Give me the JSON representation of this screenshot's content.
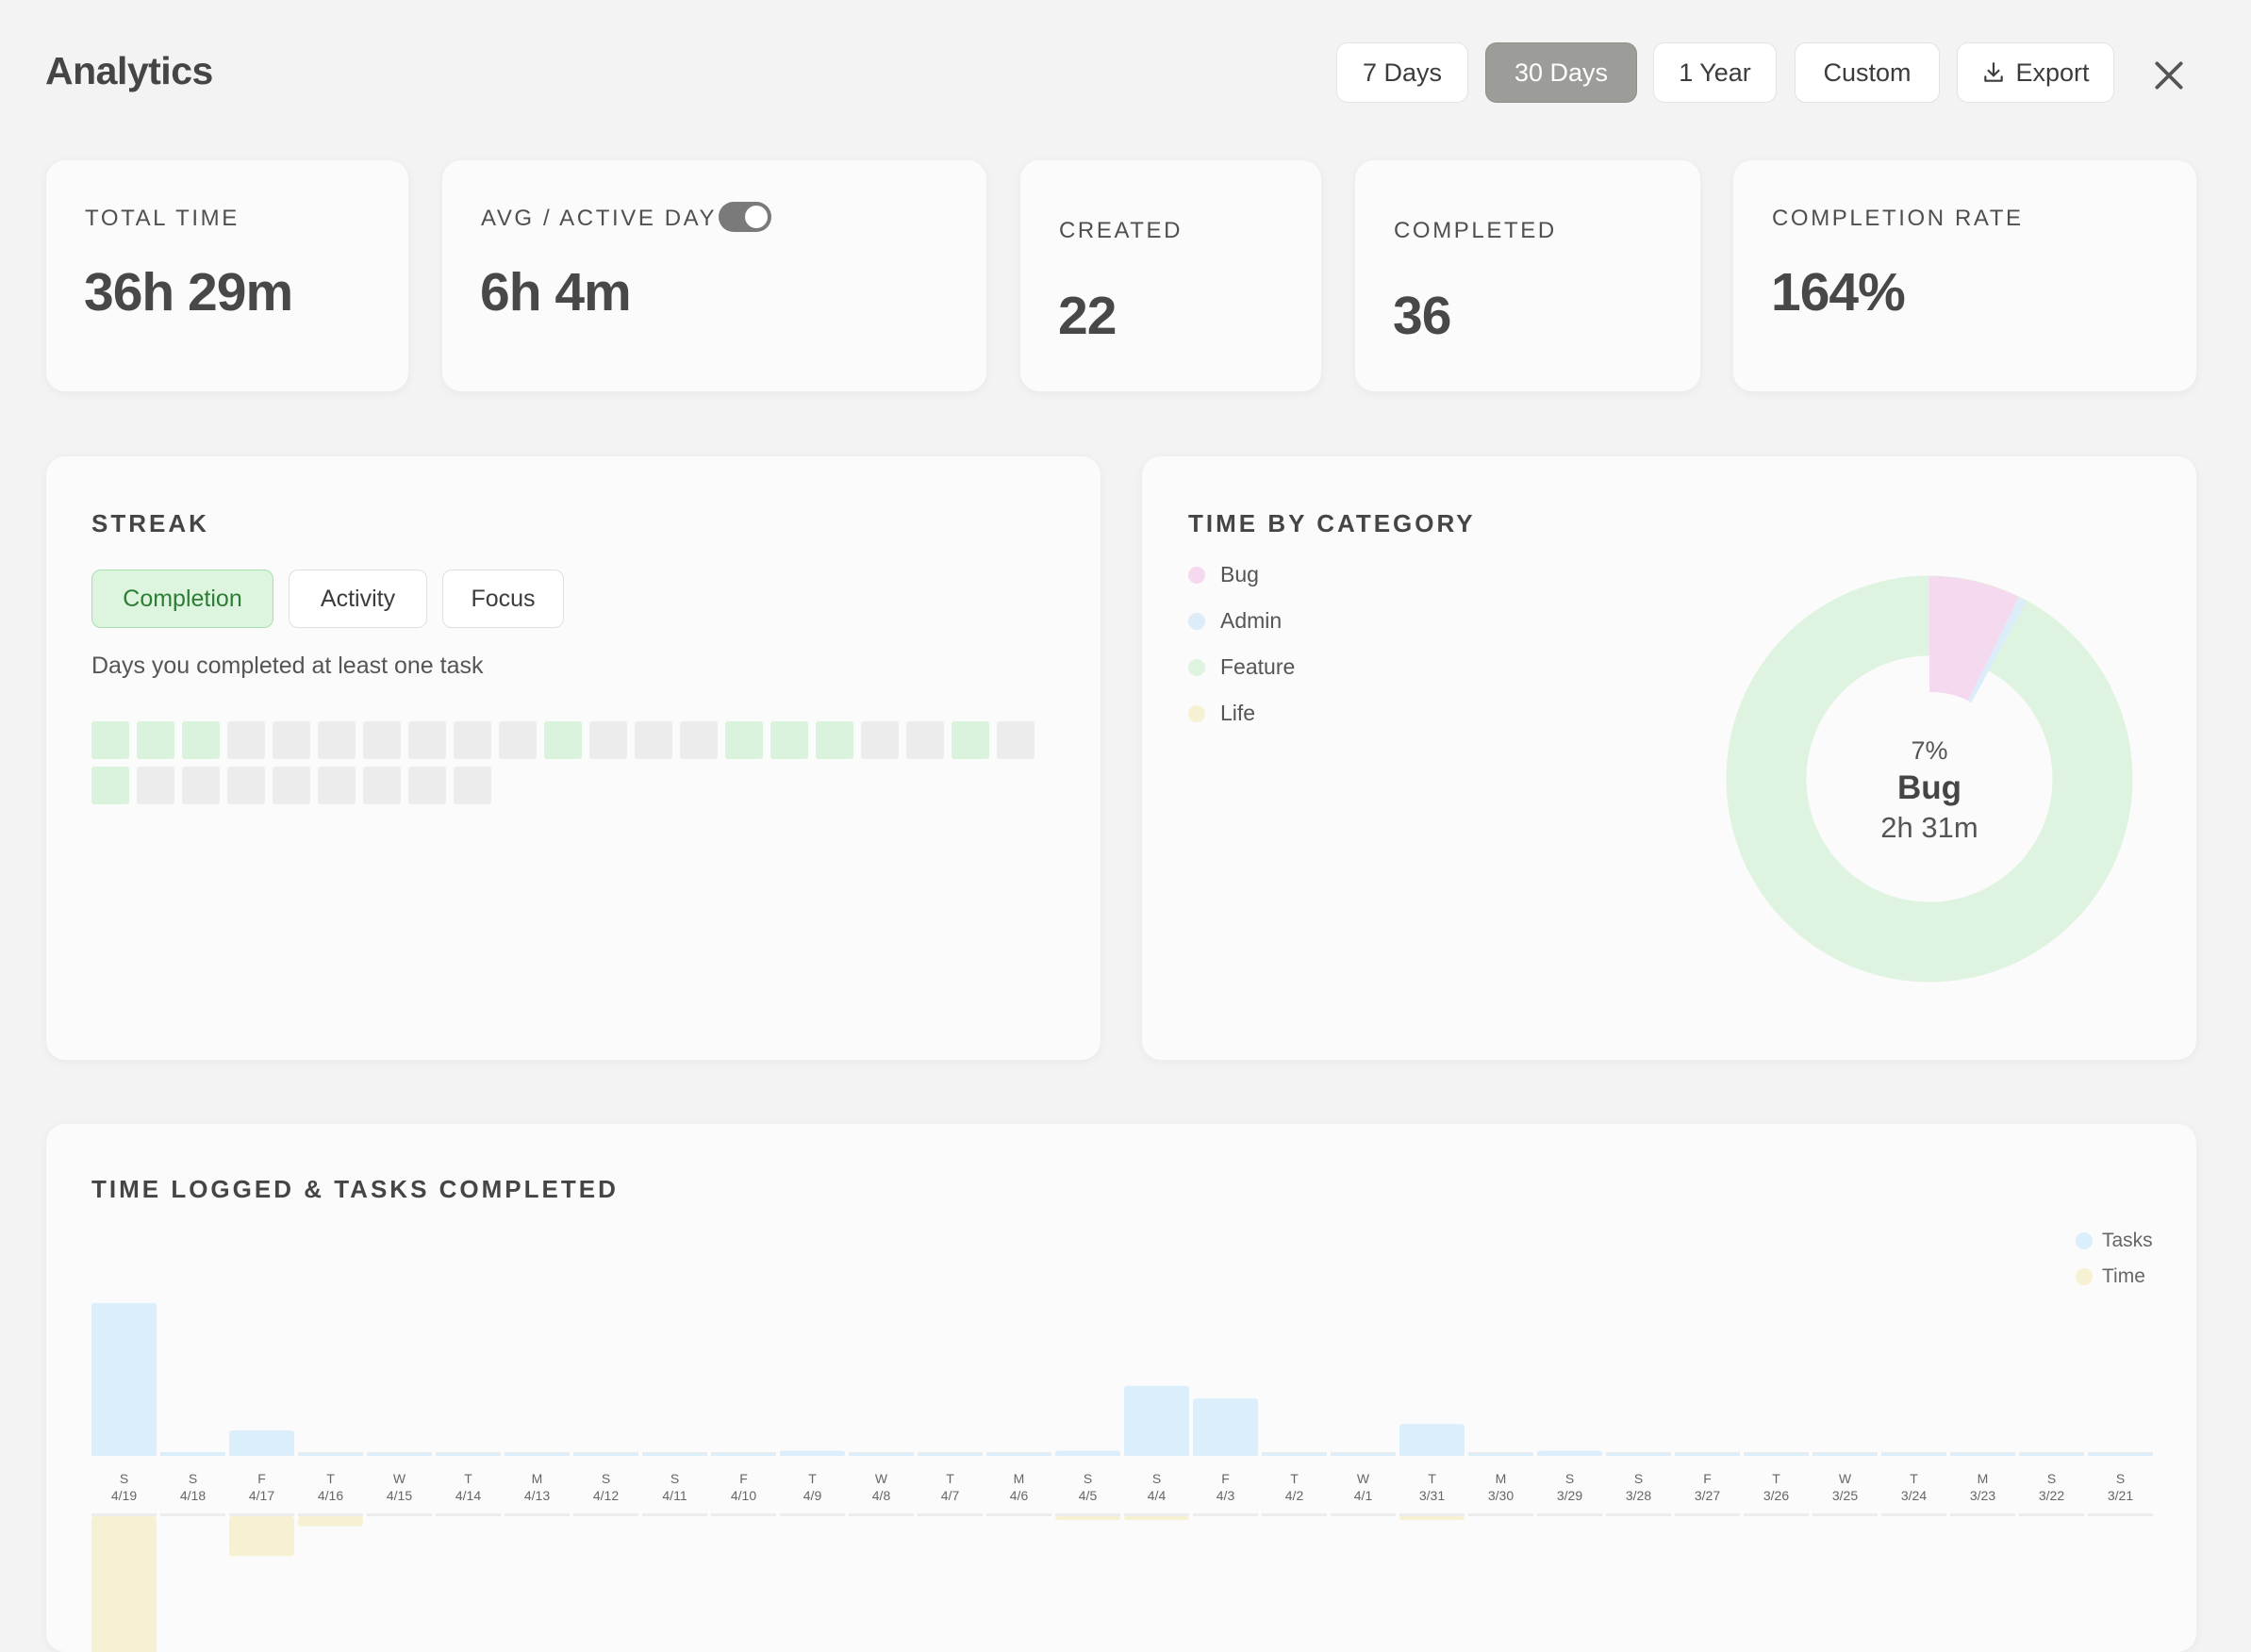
{
  "header": {
    "title": "Analytics",
    "ranges": [
      {
        "label": "7 Days",
        "active": false
      },
      {
        "label": "30 Days",
        "active": true
      },
      {
        "label": "1 Year",
        "active": false
      },
      {
        "label": "Custom",
        "active": false
      }
    ],
    "export_label": "Export",
    "export_icon": "download-icon",
    "close_icon": "close-icon"
  },
  "stats": {
    "total_time": {
      "label": "TOTAL TIME",
      "value": "36h 29m"
    },
    "avg_active_day": {
      "label": "AVG / ACTIVE DAY",
      "value": "6h 4m",
      "toggle_on": true
    },
    "created": {
      "label": "CREATED",
      "value": "22"
    },
    "completed": {
      "label": "COMPLETED",
      "value": "36"
    },
    "completion_rate": {
      "label": "COMPLETION RATE",
      "value": "164%"
    }
  },
  "streak": {
    "title": "STREAK",
    "tabs": [
      {
        "label": "Completion",
        "active": true
      },
      {
        "label": "Activity",
        "active": false
      },
      {
        "label": "Focus",
        "active": false
      }
    ],
    "description": "Days you completed at least one task",
    "days_completed": [
      1,
      1,
      1,
      0,
      0,
      0,
      0,
      0,
      0,
      0,
      1,
      0,
      0,
      0,
      1,
      1,
      1,
      0,
      0,
      1,
      0,
      1,
      0,
      0,
      0,
      0,
      0,
      0,
      0,
      0
    ],
    "colors": {
      "done": "#d9f3dc",
      "empty": "#ececec"
    }
  },
  "category": {
    "title": "TIME BY CATEGORY",
    "legend": [
      {
        "name": "Bug",
        "color": "#f5d9ef"
      },
      {
        "name": "Admin",
        "color": "#dcecf9"
      },
      {
        "name": "Feature",
        "color": "#dff4e0"
      },
      {
        "name": "Life",
        "color": "#f7f1d3"
      }
    ],
    "selected": {
      "percent": "7%",
      "name": "Bug",
      "time": "2h 31m"
    }
  },
  "chart_data": {
    "type": "bar",
    "title": "TIME LOGGED & TASKS COMPLETED",
    "weekday_labels": [
      "S",
      "S",
      "F",
      "T",
      "W",
      "T",
      "M",
      "S",
      "S",
      "F",
      "T",
      "W",
      "T",
      "M",
      "S",
      "S",
      "F",
      "T",
      "W",
      "T",
      "M",
      "S",
      "S",
      "F",
      "T",
      "W",
      "T",
      "M",
      "S",
      "S"
    ],
    "categories": [
      "4/19",
      "4/18",
      "4/17",
      "4/16",
      "4/15",
      "4/14",
      "4/13",
      "4/12",
      "4/11",
      "4/10",
      "4/9",
      "4/8",
      "4/7",
      "4/6",
      "4/5",
      "4/4",
      "4/3",
      "4/2",
      "4/1",
      "3/31",
      "3/30",
      "3/29",
      "3/28",
      "3/27",
      "3/26",
      "3/25",
      "3/24",
      "3/23",
      "3/22",
      "3/21"
    ],
    "series": [
      {
        "name": "Tasks",
        "color": "#dbeefb",
        "values": [
          12,
          0.3,
          2,
          0.2,
          0.2,
          0.2,
          0.2,
          0.2,
          0.2,
          0.2,
          0.4,
          0.2,
          0.2,
          0.2,
          0.4,
          5.5,
          4.5,
          0.2,
          0.2,
          2.5,
          0.2,
          0.4,
          0.2,
          0.2,
          0.2,
          0.2,
          0.2,
          0.2,
          0.2,
          0.2
        ]
      },
      {
        "name": "Time",
        "color": "#f7f1d3",
        "values": [
          8.5,
          0,
          2,
          0.5,
          0,
          0,
          0,
          0,
          0,
          0,
          0,
          0,
          0,
          0,
          0.2,
          0.2,
          0,
          0,
          0,
          0.2,
          0,
          0,
          0,
          0,
          0,
          0,
          0,
          0,
          0,
          0
        ]
      }
    ],
    "legend_position": "top-right",
    "grid": false
  }
}
